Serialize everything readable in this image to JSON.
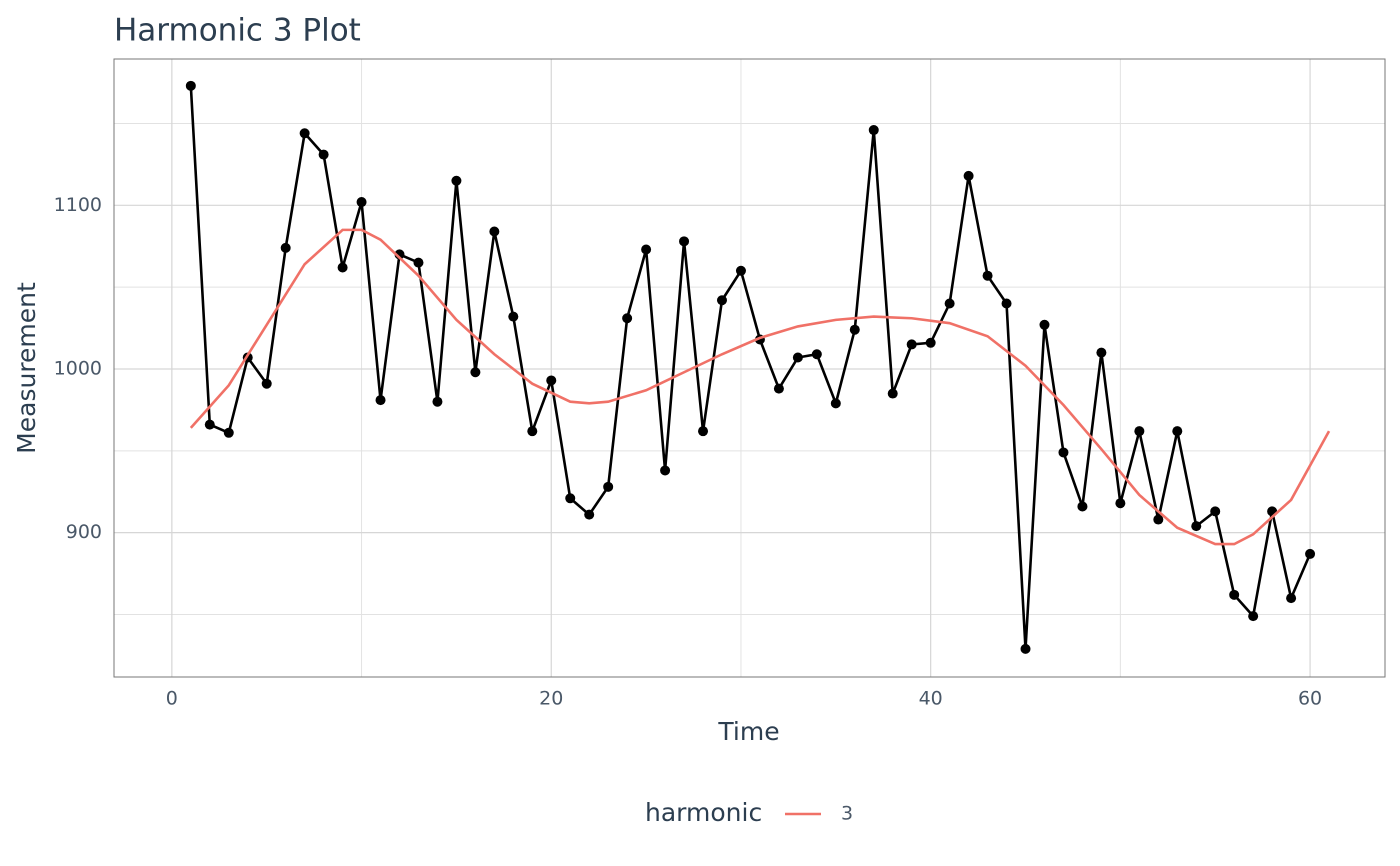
{
  "chart_data": {
    "type": "line",
    "title": "Harmonic 3 Plot",
    "x_label": "Time",
    "y_label": "Measurement",
    "legend_title": "harmonic",
    "legend_position": "bottom",
    "grid": true,
    "xlim": [
      -3.05,
      63.95
    ],
    "ylim": [
      811.8,
      1189.4
    ],
    "xticks": [
      0,
      20,
      40,
      60
    ],
    "yticks": [
      900,
      1000,
      1100
    ],
    "x_minor_ticks": [
      10,
      30,
      50
    ],
    "y_minor_ticks": [
      850,
      950,
      1050,
      1150
    ],
    "series": [
      {
        "color": "#000000",
        "markers": true,
        "x": [
          1,
          2,
          3,
          4,
          5,
          6,
          7,
          8,
          9,
          10,
          11,
          12,
          13,
          14,
          15,
          16,
          17,
          18,
          19,
          20,
          21,
          22,
          23,
          24,
          25,
          26,
          27,
          28,
          29,
          30,
          31,
          32,
          33,
          34,
          35,
          36,
          37,
          38,
          39,
          40,
          41,
          42,
          43,
          44,
          45,
          46,
          47,
          48,
          49,
          50,
          51,
          52,
          53,
          54,
          55,
          56,
          57,
          58,
          59,
          60
        ],
        "values": [
          1173,
          966,
          961,
          1007,
          991,
          1074,
          1144,
          1131,
          1062,
          1102,
          981,
          1070,
          1065,
          980,
          1115,
          998,
          1084,
          1032,
          962,
          993,
          921,
          911,
          928,
          1031,
          1073,
          938,
          1078,
          962,
          1042,
          1060,
          1018,
          988,
          1007,
          1009,
          979,
          1024,
          1146,
          985,
          1015,
          1016,
          1040,
          1118,
          1057,
          1040,
          829,
          1027,
          949,
          916,
          1010,
          918,
          962,
          908,
          962,
          904,
          913,
          862,
          849,
          913,
          860,
          887
        ]
      },
      {
        "name": "3",
        "color": "#f07167",
        "markers": false,
        "x": [
          1,
          3,
          5,
          7,
          9,
          10,
          11,
          13,
          15,
          17,
          19,
          21,
          22,
          23,
          25,
          27,
          29,
          31,
          33,
          35,
          37,
          39,
          41,
          43,
          45,
          47,
          49,
          51,
          53,
          55,
          56,
          57,
          59,
          61
        ],
        "values": [
          964,
          990,
          1027,
          1064,
          1085,
          1085,
          1079,
          1057,
          1030,
          1009,
          991,
          980,
          979,
          980,
          987,
          998,
          1009,
          1019,
          1026,
          1030,
          1032,
          1031,
          1028,
          1020,
          1002,
          978,
          951,
          923,
          903,
          893,
          893,
          899,
          920,
          962
        ]
      }
    ]
  }
}
